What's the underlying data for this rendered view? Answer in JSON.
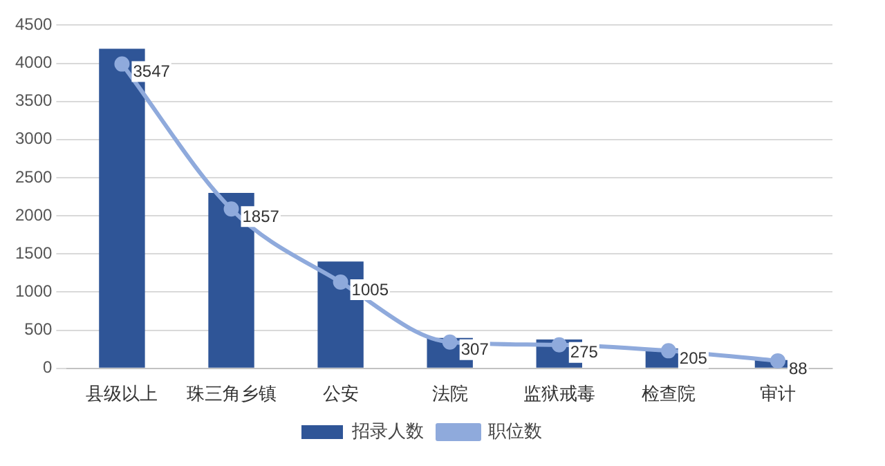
{
  "chart_data": {
    "type": "bar",
    "categories": [
      "县级以上",
      "珠三角乡镇",
      "公安",
      "法院",
      "监狱戒毒",
      "检查院",
      "审计"
    ],
    "series": [
      {
        "name": "招录人数",
        "color": "#2f5597",
        "values": [
          4190,
          2300,
          1400,
          400,
          380,
          260,
          110
        ]
      },
      {
        "name": "职位数",
        "type": "line",
        "axis": "y2",
        "color": "#8faadc",
        "values": [
          3547,
          1857,
          1005,
          307,
          275,
          205,
          88
        ],
        "value_labels": [
          "3547",
          "1857",
          "1005",
          "307",
          "275",
          "205",
          "88"
        ]
      }
    ],
    "ylim": [
      0,
      4500
    ],
    "yticks": [
      0,
      500,
      1000,
      1500,
      2000,
      2500,
      3000,
      3500,
      4000,
      4500
    ],
    "y2lim": [
      0,
      4000
    ],
    "grid": "y",
    "legend": "bottom",
    "marker": "circle"
  }
}
